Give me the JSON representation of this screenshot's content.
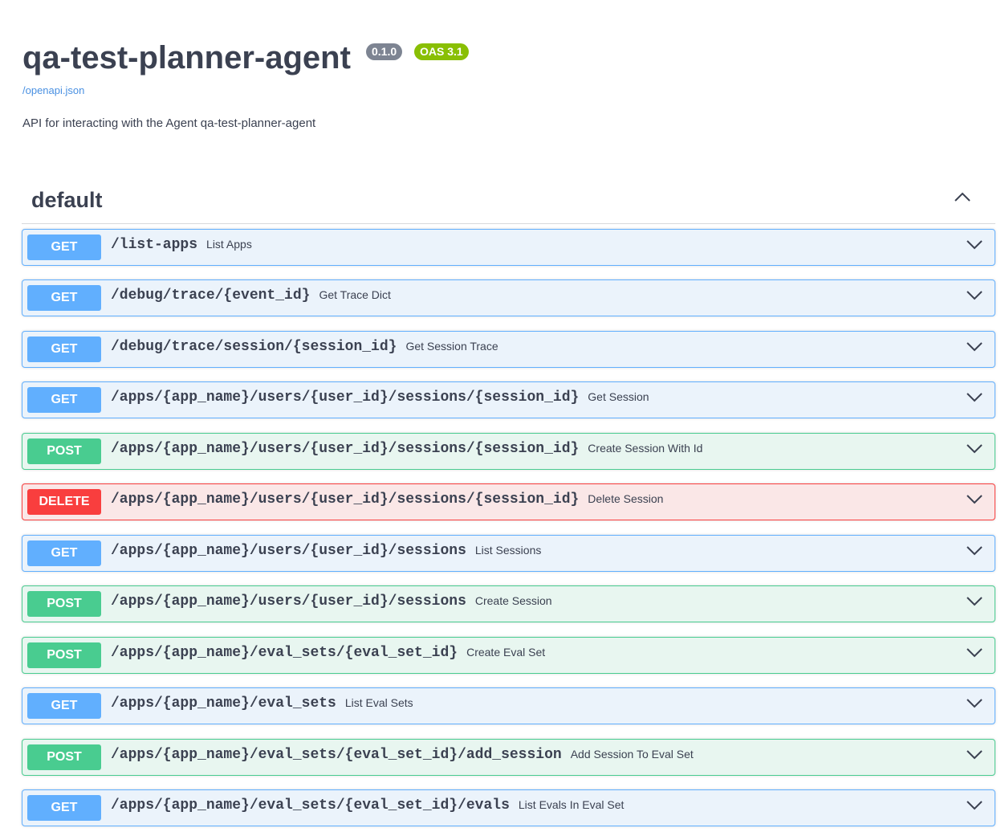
{
  "info": {
    "title": "qa-test-planner-agent",
    "version": "0.1.0",
    "oas": "OAS 3.1",
    "spec_link": "/openapi.json",
    "description": "API for interacting with the Agent qa-test-planner-agent"
  },
  "colors": {
    "GET": {
      "bg": "#ebf3fb",
      "border": "#61affe"
    },
    "POST": {
      "bg": "#e8f6f0",
      "border": "#49cc90"
    },
    "DELETE": {
      "bg": "#fae7e7",
      "border": "#f93e3e"
    }
  },
  "tag": {
    "name": "default",
    "expanded": true,
    "icon": "chevron-up-icon"
  },
  "operations": [
    {
      "method": "GET",
      "path": "/list-apps",
      "summary": "List Apps"
    },
    {
      "method": "GET",
      "path": "/debug/trace/{event_id}",
      "summary": "Get Trace Dict"
    },
    {
      "method": "GET",
      "path": "/debug/trace/session/{session_id}",
      "summary": "Get Session Trace"
    },
    {
      "method": "GET",
      "path": "/apps/{app_name}/users/{user_id}/sessions/{session_id}",
      "summary": "Get Session"
    },
    {
      "method": "POST",
      "path": "/apps/{app_name}/users/{user_id}/sessions/{session_id}",
      "summary": "Create Session With Id"
    },
    {
      "method": "DELETE",
      "path": "/apps/{app_name}/users/{user_id}/sessions/{session_id}",
      "summary": "Delete Session"
    },
    {
      "method": "GET",
      "path": "/apps/{app_name}/users/{user_id}/sessions",
      "summary": "List Sessions"
    },
    {
      "method": "POST",
      "path": "/apps/{app_name}/users/{user_id}/sessions",
      "summary": "Create Session"
    },
    {
      "method": "POST",
      "path": "/apps/{app_name}/eval_sets/{eval_set_id}",
      "summary": "Create Eval Set"
    },
    {
      "method": "GET",
      "path": "/apps/{app_name}/eval_sets",
      "summary": "List Eval Sets"
    },
    {
      "method": "POST",
      "path": "/apps/{app_name}/eval_sets/{eval_set_id}/add_session",
      "summary": "Add Session To Eval Set"
    },
    {
      "method": "GET",
      "path": "/apps/{app_name}/eval_sets/{eval_set_id}/evals",
      "summary": "List Evals In Eval Set"
    }
  ]
}
